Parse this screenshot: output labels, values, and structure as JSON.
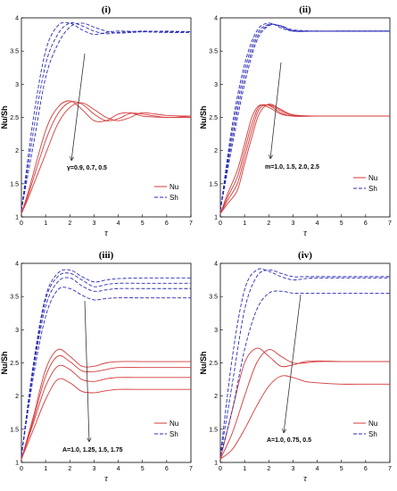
{
  "figure": {
    "panels": [
      {
        "title": "(i)",
        "annotation": "γ=0.9, 0.7, 0.5"
      },
      {
        "title": "(ii)",
        "annotation": "m=1.0, 1.5, 2.0, 2.5"
      },
      {
        "title": "(iii)",
        "annotation": "A=1.0, 1.25, 1.5, 1.75"
      },
      {
        "title": "(iv)",
        "annotation": "A=1.0, 0.75, 0.5"
      }
    ],
    "ylabel": "Nu/Sh",
    "xlabel": "τ",
    "legend": [
      "Nu",
      "Sh"
    ]
  },
  "colors": {
    "Nu": "#d43a3a",
    "Sh": "#2a2ab8",
    "arrow": "#333333"
  },
  "chart_data": [
    {
      "type": "line",
      "title": "(i)",
      "xlabel": "τ",
      "ylabel": "Nu/Sh",
      "xlim": [
        0,
        7
      ],
      "ylim": [
        1,
        4
      ],
      "xticks": [
        0,
        1,
        2,
        3,
        4,
        5,
        6,
        7
      ],
      "yticks": [
        1,
        1.5,
        2,
        2.5,
        3,
        3.5,
        4
      ],
      "legend": [
        "Nu",
        "Sh"
      ],
      "legend_position": "bottom-right",
      "annotation": "γ=0.9, 0.7, 0.5",
      "series": [
        {
          "name": "Nu",
          "style": "solid",
          "x": [
            0,
            0.3,
            1,
            1.5,
            2,
            2.5,
            3,
            3.5,
            4,
            4.5,
            5,
            6,
            7
          ],
          "y": [
            1.05,
            1.4,
            2.3,
            2.65,
            2.75,
            2.62,
            2.45,
            2.45,
            2.55,
            2.57,
            2.52,
            2.5,
            2.5
          ]
        },
        {
          "style": "solid",
          "x": [
            0,
            0.3,
            1,
            1.5,
            2,
            2.5,
            3,
            3.5,
            4,
            4.5,
            5,
            6,
            7
          ],
          "y": [
            1.05,
            1.35,
            2.15,
            2.55,
            2.73,
            2.7,
            2.55,
            2.45,
            2.48,
            2.56,
            2.55,
            2.5,
            2.52
          ]
        },
        {
          "style": "solid",
          "x": [
            0,
            0.3,
            1,
            1.5,
            2,
            2.5,
            3,
            3.5,
            4,
            4.5,
            5,
            6,
            7
          ],
          "y": [
            1.05,
            1.3,
            1.95,
            2.4,
            2.65,
            2.72,
            2.62,
            2.5,
            2.45,
            2.5,
            2.57,
            2.53,
            2.52
          ]
        },
        {
          "name": "Sh",
          "style": "dashed",
          "x": [
            0,
            0.5,
            1,
            1.5,
            2,
            2.5,
            3,
            3.5,
            4,
            5,
            6,
            7
          ],
          "y": [
            1.1,
            2.5,
            3.5,
            3.88,
            3.92,
            3.82,
            3.75,
            3.78,
            3.8,
            3.79,
            3.78,
            3.78
          ]
        },
        {
          "style": "dashed",
          "x": [
            0,
            0.5,
            1,
            1.5,
            2,
            2.5,
            3,
            3.5,
            4,
            5,
            6,
            7
          ],
          "y": [
            1.1,
            2.3,
            3.3,
            3.75,
            3.92,
            3.88,
            3.8,
            3.76,
            3.78,
            3.8,
            3.79,
            3.79
          ]
        },
        {
          "style": "dashed",
          "x": [
            0,
            0.5,
            1,
            1.5,
            2,
            2.5,
            3,
            3.5,
            4,
            5,
            6,
            7
          ],
          "y": [
            1.1,
            2.1,
            3.1,
            3.6,
            3.86,
            3.92,
            3.86,
            3.8,
            3.77,
            3.79,
            3.8,
            3.79
          ]
        }
      ]
    },
    {
      "type": "line",
      "title": "(ii)",
      "xlabel": "τ",
      "ylabel": "Nu/Sh",
      "xlim": [
        0,
        7
      ],
      "ylim": [
        1,
        4
      ],
      "xticks": [
        0,
        1,
        2,
        3,
        4,
        5,
        6,
        7
      ],
      "yticks": [
        1,
        1.5,
        2,
        2.5,
        3,
        3.5,
        4
      ],
      "legend": [
        "Nu",
        "Sh"
      ],
      "legend_position": "bottom-right",
      "annotation": "m=1.0, 1.5, 2.0, 2.5",
      "series": [
        {
          "name": "Nu",
          "style": "solid",
          "x": [
            0,
            0.3,
            0.7,
            1,
            1.3,
            1.6,
            2,
            2.5,
            3,
            4,
            5,
            6,
            7
          ],
          "y": [
            1.05,
            1.35,
            1.7,
            2.1,
            2.5,
            2.68,
            2.65,
            2.55,
            2.52,
            2.52,
            2.52,
            2.52,
            2.52
          ]
        },
        {
          "style": "solid",
          "x": [
            0,
            0.3,
            0.7,
            1,
            1.3,
            1.6,
            2,
            2.5,
            3,
            4,
            5,
            6,
            7
          ],
          "y": [
            1.05,
            1.3,
            1.6,
            2.0,
            2.4,
            2.66,
            2.68,
            2.57,
            2.52,
            2.52,
            2.52,
            2.52,
            2.52
          ]
        },
        {
          "style": "solid",
          "x": [
            0,
            0.3,
            0.7,
            1,
            1.3,
            1.6,
            2,
            2.5,
            3,
            4,
            5,
            6,
            7
          ],
          "y": [
            1.05,
            1.25,
            1.5,
            1.9,
            2.3,
            2.62,
            2.69,
            2.6,
            2.53,
            2.52,
            2.52,
            2.52,
            2.52
          ]
        },
        {
          "style": "solid",
          "x": [
            0,
            0.3,
            0.7,
            1,
            1.3,
            1.6,
            2,
            2.5,
            3,
            4,
            5,
            6,
            7
          ],
          "y": [
            1.05,
            1.2,
            1.4,
            1.8,
            2.2,
            2.55,
            2.7,
            2.62,
            2.54,
            2.52,
            2.52,
            2.52,
            2.52
          ]
        },
        {
          "name": "Sh",
          "style": "dashed",
          "x": [
            0,
            0.5,
            1,
            1.5,
            2,
            2.5,
            3,
            4,
            5,
            6,
            7
          ],
          "y": [
            1.1,
            2.4,
            3.3,
            3.8,
            3.92,
            3.85,
            3.8,
            3.8,
            3.8,
            3.8,
            3.8
          ]
        },
        {
          "style": "dashed",
          "x": [
            0,
            0.5,
            1,
            1.5,
            2,
            2.5,
            3,
            4,
            5,
            6,
            7
          ],
          "y": [
            1.1,
            2.3,
            3.2,
            3.75,
            3.9,
            3.87,
            3.8,
            3.8,
            3.8,
            3.8,
            3.8
          ]
        },
        {
          "style": "dashed",
          "x": [
            0,
            0.5,
            1,
            1.5,
            2,
            2.5,
            3,
            4,
            5,
            6,
            7
          ],
          "y": [
            1.1,
            2.2,
            3.1,
            3.7,
            3.89,
            3.88,
            3.81,
            3.8,
            3.8,
            3.8,
            3.8
          ]
        },
        {
          "style": "dashed",
          "x": [
            0,
            0.5,
            1,
            1.5,
            2,
            2.5,
            3,
            4,
            5,
            6,
            7
          ],
          "y": [
            1.1,
            2.1,
            3.0,
            3.65,
            3.88,
            3.88,
            3.82,
            3.8,
            3.8,
            3.8,
            3.8
          ]
        }
      ]
    },
    {
      "type": "line",
      "title": "(iii)",
      "xlabel": "τ",
      "ylabel": "Nu/Sh",
      "xlim": [
        0,
        7
      ],
      "ylim": [
        1,
        4
      ],
      "xticks": [
        0,
        1,
        2,
        3,
        4,
        5,
        6,
        7
      ],
      "yticks": [
        1,
        1.5,
        2,
        2.5,
        3,
        3.5,
        4
      ],
      "legend": [
        "Nu",
        "Sh"
      ],
      "legend_position": "bottom-right",
      "annotation": "A=1.0, 1.25, 1.5, 1.75",
      "series": [
        {
          "name": "Nu",
          "style": "solid",
          "x": [
            0,
            0.5,
            1,
            1.5,
            2,
            2.5,
            3,
            3.5,
            4,
            5,
            6,
            7
          ],
          "y": [
            1.05,
            1.7,
            2.4,
            2.7,
            2.6,
            2.45,
            2.45,
            2.5,
            2.52,
            2.52,
            2.52,
            2.52
          ]
        },
        {
          "style": "solid",
          "x": [
            0,
            0.5,
            1,
            1.5,
            2,
            2.5,
            3,
            3.5,
            4,
            5,
            6,
            7
          ],
          "y": [
            1.05,
            1.65,
            2.3,
            2.6,
            2.52,
            2.38,
            2.37,
            2.4,
            2.43,
            2.43,
            2.43,
            2.43
          ]
        },
        {
          "style": "solid",
          "x": [
            0,
            0.5,
            1,
            1.5,
            2,
            2.5,
            3,
            3.5,
            4,
            5,
            6,
            7
          ],
          "y": [
            1.05,
            1.6,
            2.15,
            2.45,
            2.4,
            2.25,
            2.22,
            2.26,
            2.28,
            2.28,
            2.28,
            2.28
          ]
        },
        {
          "style": "solid",
          "x": [
            0,
            0.5,
            1,
            1.5,
            2,
            2.5,
            3,
            3.5,
            4,
            5,
            6,
            7
          ],
          "y": [
            1.05,
            1.5,
            1.95,
            2.25,
            2.2,
            2.07,
            2.05,
            2.08,
            2.1,
            2.1,
            2.1,
            2.1
          ]
        },
        {
          "name": "Sh",
          "style": "dashed",
          "x": [
            0,
            0.5,
            1,
            1.5,
            2,
            2.5,
            3,
            3.5,
            4,
            5,
            6,
            7
          ],
          "y": [
            1.1,
            2.5,
            3.5,
            3.85,
            3.9,
            3.8,
            3.72,
            3.75,
            3.77,
            3.78,
            3.78,
            3.78
          ]
        },
        {
          "style": "dashed",
          "x": [
            0,
            0.5,
            1,
            1.5,
            2,
            2.5,
            3,
            3.5,
            4,
            5,
            6,
            7
          ],
          "y": [
            1.1,
            2.45,
            3.45,
            3.8,
            3.85,
            3.75,
            3.65,
            3.68,
            3.7,
            3.7,
            3.7,
            3.7
          ]
        },
        {
          "style": "dashed",
          "x": [
            0,
            0.5,
            1,
            1.5,
            2,
            2.5,
            3,
            3.5,
            4,
            5,
            6,
            7
          ],
          "y": [
            1.1,
            2.4,
            3.35,
            3.72,
            3.78,
            3.66,
            3.58,
            3.6,
            3.62,
            3.62,
            3.62,
            3.62
          ]
        },
        {
          "style": "dashed",
          "x": [
            0,
            0.5,
            1,
            1.5,
            2,
            2.5,
            3,
            3.5,
            4,
            5,
            6,
            7
          ],
          "y": [
            1.1,
            2.3,
            3.2,
            3.6,
            3.62,
            3.52,
            3.45,
            3.47,
            3.48,
            3.48,
            3.48,
            3.48
          ]
        }
      ]
    },
    {
      "type": "line",
      "title": "(iv)",
      "xlabel": "τ",
      "ylabel": "Nu/Sh",
      "xlim": [
        0,
        7
      ],
      "ylim": [
        1,
        4
      ],
      "xticks": [
        0,
        1,
        2,
        3,
        4,
        5,
        6,
        7
      ],
      "yticks": [
        1,
        1.5,
        2,
        2.5,
        3,
        3.5,
        4
      ],
      "legend": [
        "Nu",
        "Sh"
      ],
      "legend_position": "bottom-right",
      "annotation": "A=1.0, 0.75, 0.5",
      "series": [
        {
          "name": "Nu",
          "style": "solid",
          "x": [
            0,
            0.5,
            1,
            1.5,
            2,
            2.5,
            3,
            3.5,
            4,
            5,
            6,
            7
          ],
          "y": [
            1.05,
            1.8,
            2.5,
            2.72,
            2.6,
            2.45,
            2.47,
            2.52,
            2.53,
            2.52,
            2.52,
            2.52
          ]
        },
        {
          "style": "solid",
          "x": [
            0,
            0.5,
            1,
            1.5,
            2,
            2.5,
            3,
            3.5,
            4,
            5,
            6,
            7
          ],
          "y": [
            1.05,
            1.45,
            2.0,
            2.5,
            2.7,
            2.6,
            2.5,
            2.5,
            2.52,
            2.52,
            2.52,
            2.52
          ]
        },
        {
          "style": "solid",
          "x": [
            0,
            0.5,
            1,
            1.5,
            2,
            2.5,
            3,
            3.5,
            4,
            5,
            6,
            7
          ],
          "y": [
            1.05,
            1.2,
            1.5,
            1.85,
            2.15,
            2.3,
            2.28,
            2.22,
            2.2,
            2.18,
            2.18,
            2.18
          ]
        },
        {
          "name": "Sh",
          "style": "dashed",
          "x": [
            0,
            0.5,
            1,
            1.5,
            2,
            2.5,
            3,
            3.5,
            4,
            5,
            6,
            7
          ],
          "y": [
            1.1,
            2.6,
            3.6,
            3.9,
            3.88,
            3.8,
            3.75,
            3.77,
            3.78,
            3.78,
            3.78,
            3.78
          ]
        },
        {
          "style": "dashed",
          "x": [
            0,
            0.5,
            1,
            1.5,
            2,
            2.5,
            3,
            3.5,
            4,
            5,
            6,
            7
          ],
          "y": [
            1.1,
            2.2,
            3.3,
            3.8,
            3.9,
            3.85,
            3.8,
            3.8,
            3.8,
            3.8,
            3.8,
            3.8
          ]
        },
        {
          "style": "dashed",
          "x": [
            0,
            0.5,
            1,
            1.5,
            2,
            2.5,
            3,
            3.5,
            4,
            5,
            6,
            7
          ],
          "y": [
            1.1,
            1.8,
            2.7,
            3.3,
            3.55,
            3.58,
            3.55,
            3.55,
            3.55,
            3.55,
            3.55,
            3.55
          ]
        }
      ]
    }
  ]
}
